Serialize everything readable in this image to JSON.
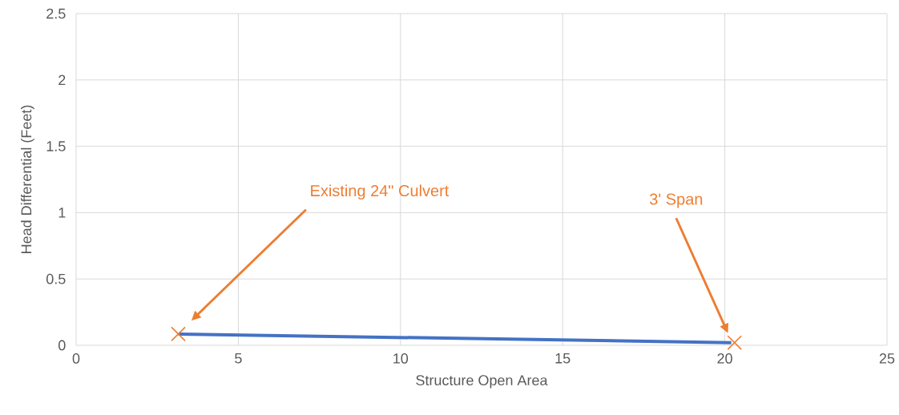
{
  "chart_data": {
    "type": "line",
    "xlabel": "Structure Open Area",
    "ylabel": "Head Differential (Feet)",
    "xlim": [
      0,
      25
    ],
    "ylim": [
      0,
      2.5
    ],
    "xticks": [
      0,
      5,
      10,
      15,
      20,
      25
    ],
    "yticks": [
      0,
      0.5,
      1,
      1.5,
      2,
      2.5
    ],
    "grid": true,
    "series": [
      {
        "color": "#4472c4",
        "x": [
          3.15,
          20.2
        ],
        "values": [
          0.085,
          0.02
        ]
      },
      {
        "type": "scatter",
        "color": "#ed7d31",
        "marker": "cross",
        "x": [
          3.15,
          20.3
        ],
        "values": [
          0.085,
          0.02
        ]
      }
    ],
    "annotations": [
      "Existing 24\" Culvert",
      "3' Span"
    ]
  }
}
